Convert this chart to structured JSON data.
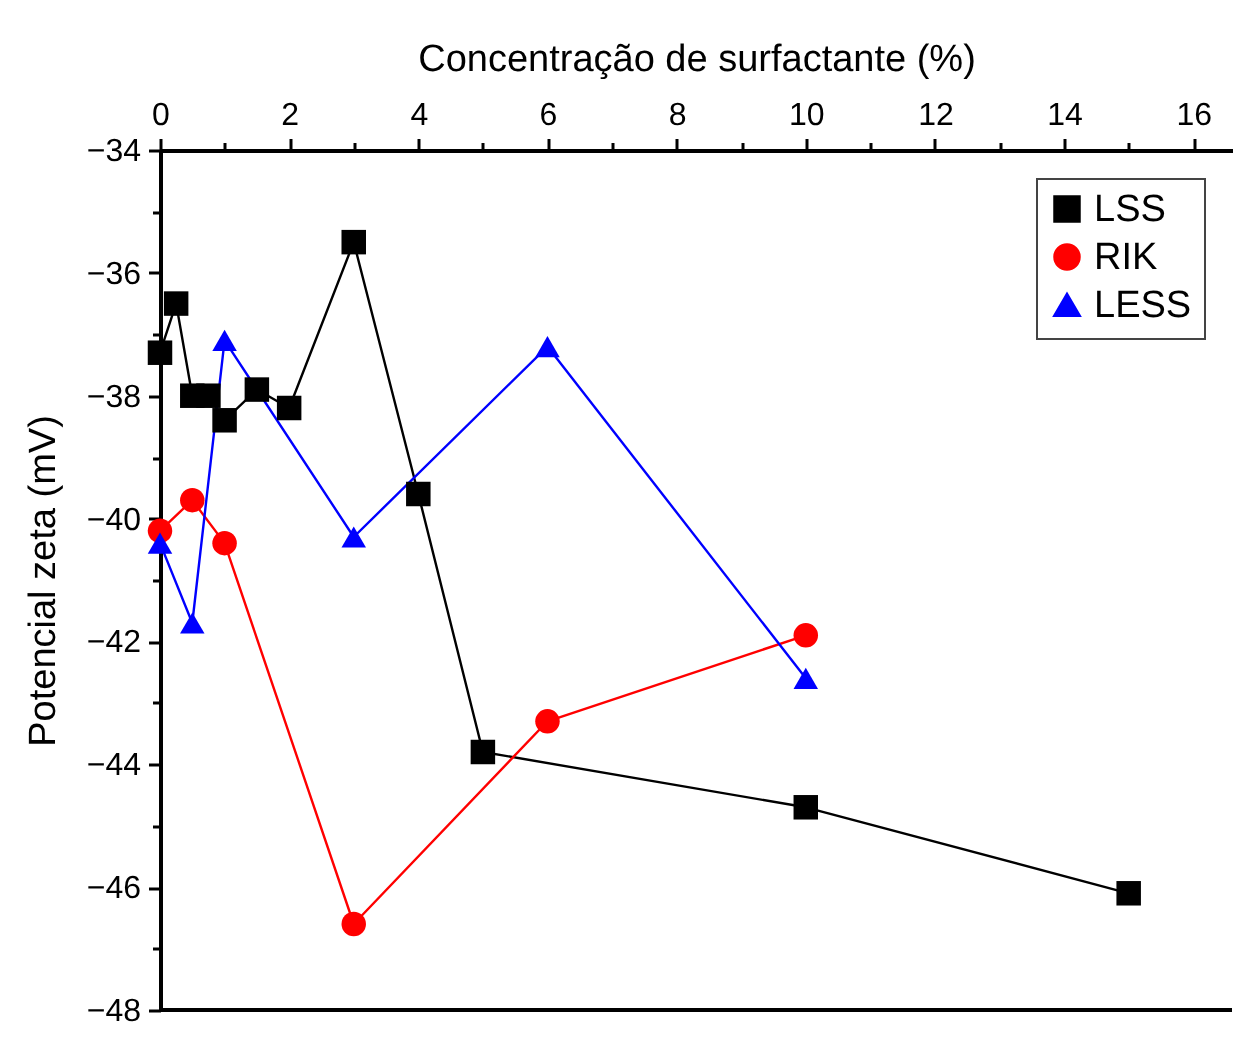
{
  "chart_data": {
    "type": "line",
    "xlabel": "Concentração de surfactante (%)",
    "ylabel": "Potencial zeta (mV)",
    "xlim": [
      0,
      16.6
    ],
    "xticks": [
      0,
      {
        "value": 1,
        "label": null
      },
      2,
      {
        "value": 3,
        "label": null
      },
      4,
      {
        "value": 5,
        "label": null
      },
      6,
      {
        "value": 7,
        "label": null
      },
      8,
      {
        "value": 9,
        "label": null
      },
      10,
      {
        "value": 11,
        "label": null
      },
      12,
      {
        "value": 13,
        "label": null
      },
      14,
      {
        "value": 15,
        "label": null
      },
      16
    ],
    "ylim": [
      -48,
      -34
    ],
    "yticks": [
      -48,
      {
        "value": -47,
        "label": null
      },
      -46,
      {
        "value": -45,
        "label": null
      },
      -44,
      {
        "value": -43,
        "label": null
      },
      -42,
      {
        "value": -41,
        "label": null
      },
      -40,
      {
        "value": -39,
        "label": null
      },
      -38,
      {
        "value": -37,
        "label": null
      },
      -36,
      {
        "value": -35,
        "label": null
      },
      -34
    ],
    "legend": "top right",
    "grid": false,
    "series": [
      {
        "name": "LSS",
        "color": "#000000",
        "marker": "square",
        "x": [
          0,
          0.25,
          0.5,
          0.75,
          1,
          1.5,
          2,
          3,
          4,
          5,
          10,
          15
        ],
        "values": [
          -37.3,
          -36.5,
          -38,
          -38,
          -38.4,
          -37.9,
          -38.2,
          -35.5,
          -39.6,
          -43.8,
          -44.7,
          -46.1
        ]
      },
      {
        "name": "RIK",
        "color": "#ff0000",
        "marker": "circle",
        "x": [
          0,
          0.5,
          1,
          3,
          6,
          10
        ],
        "values": [
          -40.2,
          -39.7,
          -40.4,
          -46.6,
          -43.3,
          -41.9
        ]
      },
      {
        "name": "LESS",
        "color": "#0000ff",
        "marker": "triangle",
        "x": [
          0,
          0.5,
          1,
          3,
          6,
          10
        ],
        "values": [
          -40.4,
          -41.7,
          -37.1,
          -40.3,
          -37.2,
          -42.6
        ]
      }
    ]
  }
}
